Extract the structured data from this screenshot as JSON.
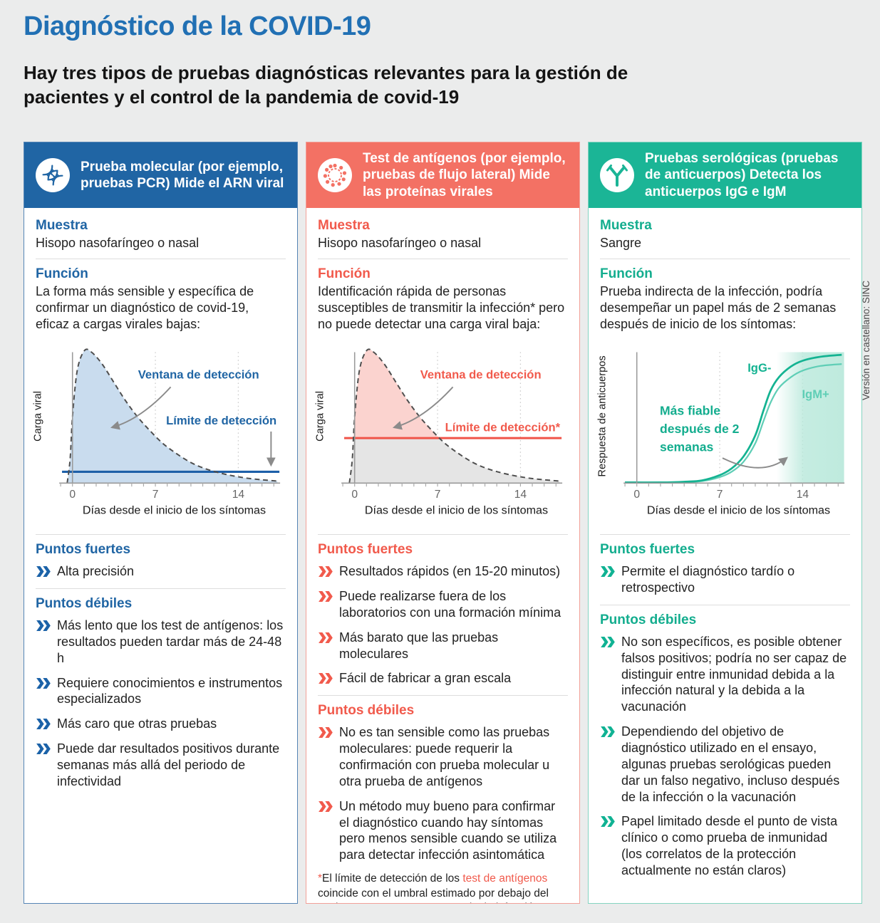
{
  "page": {
    "title": "Diagnóstico de la COVID-19",
    "subtitle": "Hay tres tipos de pruebas diagnósticas relevantes para la gestión de pacientes y el control de la pandemia de covid-19",
    "side_note": "Versión en castellano: SINC"
  },
  "section_labels": {
    "muestra": "Muestra",
    "funcion": "Función",
    "fuertes": "Puntos fuertes",
    "debiles": "Puntos débiles"
  },
  "columns": [
    {
      "id": "molecular",
      "accent": "#2065a4",
      "icon": "dna-icon",
      "header": "Prueba molecular (por ejemplo, pruebas PCR) Mide el ARN viral",
      "muestra": "Hisopo nasofaríngeo o nasal",
      "funcion": "La forma más sensible y específica de confirmar un diagnóstico de covid-19, eficaz a cargas virales bajas:",
      "fuertes": [
        "Alta precisión"
      ],
      "debiles": [
        "Más lento que los test de antígenos: los resultados pueden tardar más de 24-48 h",
        "Requiere conocimientos e instrumentos especializados",
        "Más caro que otras pruebas",
        "Puede dar resultados positivos durante semanas más allá del periodo de infectividad"
      ]
    },
    {
      "id": "antigenos",
      "accent": "#f37164",
      "icon": "virus-icon",
      "header": "Test de antígenos (por ejemplo, pruebas de flujo lateral) Mide las proteínas virales",
      "muestra": "Hisopo nasofaríngeo o nasal",
      "funcion": "Identificación rápida de personas susceptibles de transmitir la infección* pero no puede detectar una carga viral baja:",
      "fuertes": [
        "Resultados rápidos (en 15-20 minutos)",
        "Puede realizarse fuera de los laboratorios con una formación mínima",
        "Más barato que las pruebas moleculares",
        "Fácil de fabricar a gran escala"
      ],
      "debiles": [
        "No es tan sensible como las pruebas moleculares: puede requerir la confirmación con prueba molecular u otra prueba de antígenos",
        "Un método muy bueno para confirmar el diagnóstico cuando hay síntomas pero menos sensible cuando se utiliza para detectar infección asintomática"
      ],
      "footnote": {
        "star": "*",
        "pre": "El límite de detección de los ",
        "accent": "test de antígenos",
        "post": " coincide con el umbral estimado por debajo del cual una persona ya no transmite la infección."
      }
    },
    {
      "id": "serologia",
      "accent": "#1bb596",
      "icon": "antibody-icon",
      "header": "Pruebas serológicas (pruebas de anticuerpos) Detecta los anticuerpos IgG e IgM",
      "muestra": "Sangre",
      "funcion": "Prueba indirecta de la infección, podría desempeñar un papel más de 2 semanas después de inicio de los síntomas:",
      "fuertes": [
        "Permite el diagnóstico tardío o retrospectivo"
      ],
      "debiles": [
        "No son específicos, es posible obtener falsos positivos; podría no ser capaz de distinguir entre inmunidad debida a la infección natural y la debida a la vacunación",
        "Dependiendo del objetivo de diagnóstico utilizado en el ensayo, algunas pruebas serológicas pueden dar un falso negativo, incluso después de la infección o la vacunación",
        "Papel limitado desde el punto de vista clínico o como prueba de inmunidad (los correlatos de la protección actualmente no están claros)"
      ]
    }
  ],
  "chart_data": [
    {
      "type": "area",
      "panel": "molecular",
      "ylabel": "Carga viral",
      "xlabel": "Días desde el inicio de los síntomas",
      "xticks": [
        0,
        7,
        14
      ],
      "x_range": [
        -1,
        17.5
      ],
      "x": [
        -0.45,
        -0.2,
        0,
        0.4,
        1,
        1.6,
        2.5,
        3.5,
        4.5,
        5.5,
        6.5,
        7.5,
        8.5,
        10,
        11.5,
        13,
        14.5,
        16,
        17.3
      ],
      "viral_load": [
        0,
        0.18,
        0.5,
        0.85,
        1,
        0.99,
        0.9,
        0.76,
        0.62,
        0.5,
        0.4,
        0.31,
        0.24,
        0.155,
        0.1,
        0.065,
        0.04,
        0.025,
        0.015
      ],
      "detection_limit": 0.085,
      "annotations": [
        "Ventana de detección",
        "Límite de detección"
      ],
      "curve_style": "dashed",
      "grid_days": [
        7,
        14
      ]
    },
    {
      "type": "area",
      "panel": "antigenos",
      "ylabel": "Carga viral",
      "xlabel": "Días desde el inicio de los síntomas",
      "xticks": [
        0,
        7,
        14
      ],
      "x_range": [
        -1,
        17.5
      ],
      "x": [
        -0.45,
        -0.2,
        0,
        0.4,
        1,
        1.6,
        2.5,
        3.5,
        4.5,
        5.5,
        6.5,
        7.5,
        8.5,
        10,
        11.5,
        13,
        14.5,
        16,
        17.3
      ],
      "viral_load": [
        0,
        0.18,
        0.5,
        0.85,
        1,
        0.99,
        0.9,
        0.76,
        0.62,
        0.5,
        0.4,
        0.31,
        0.24,
        0.155,
        0.1,
        0.065,
        0.04,
        0.025,
        0.015
      ],
      "detection_limit": 0.34,
      "annotations": [
        "Ventana de detección",
        "Límite de detección*"
      ],
      "curve_style": "dashed",
      "grid_days": [
        7,
        14
      ]
    },
    {
      "type": "line",
      "panel": "serologia",
      "ylabel": "Respuesta de anticuerpos",
      "xlabel": "Días desde el inicio de los síntomas",
      "xticks": [
        0,
        7,
        14
      ],
      "x_range": [
        -1,
        17.5
      ],
      "x": [
        -1,
        2,
        4,
        5.5,
        7,
        8,
        9,
        10,
        10.7,
        11.3,
        12,
        13,
        14,
        15.5,
        17.3
      ],
      "series": [
        {
          "name": "IgG-",
          "values": [
            0.005,
            0.005,
            0.01,
            0.02,
            0.06,
            0.11,
            0.2,
            0.36,
            0.55,
            0.7,
            0.8,
            0.88,
            0.925,
            0.955,
            0.97
          ]
        },
        {
          "name": "IgM+",
          "values": [
            0.005,
            0.005,
            0.008,
            0.015,
            0.045,
            0.085,
            0.16,
            0.3,
            0.47,
            0.61,
            0.72,
            0.8,
            0.85,
            0.885,
            0.9
          ]
        }
      ],
      "annotation": "Más fiable después de 2 semanas",
      "annotation_lines": [
        "Más fiable",
        "después de 2",
        "semanas"
      ],
      "shaded_region_days": [
        11.8,
        17.5
      ],
      "grid_days": [
        7,
        14
      ]
    }
  ]
}
